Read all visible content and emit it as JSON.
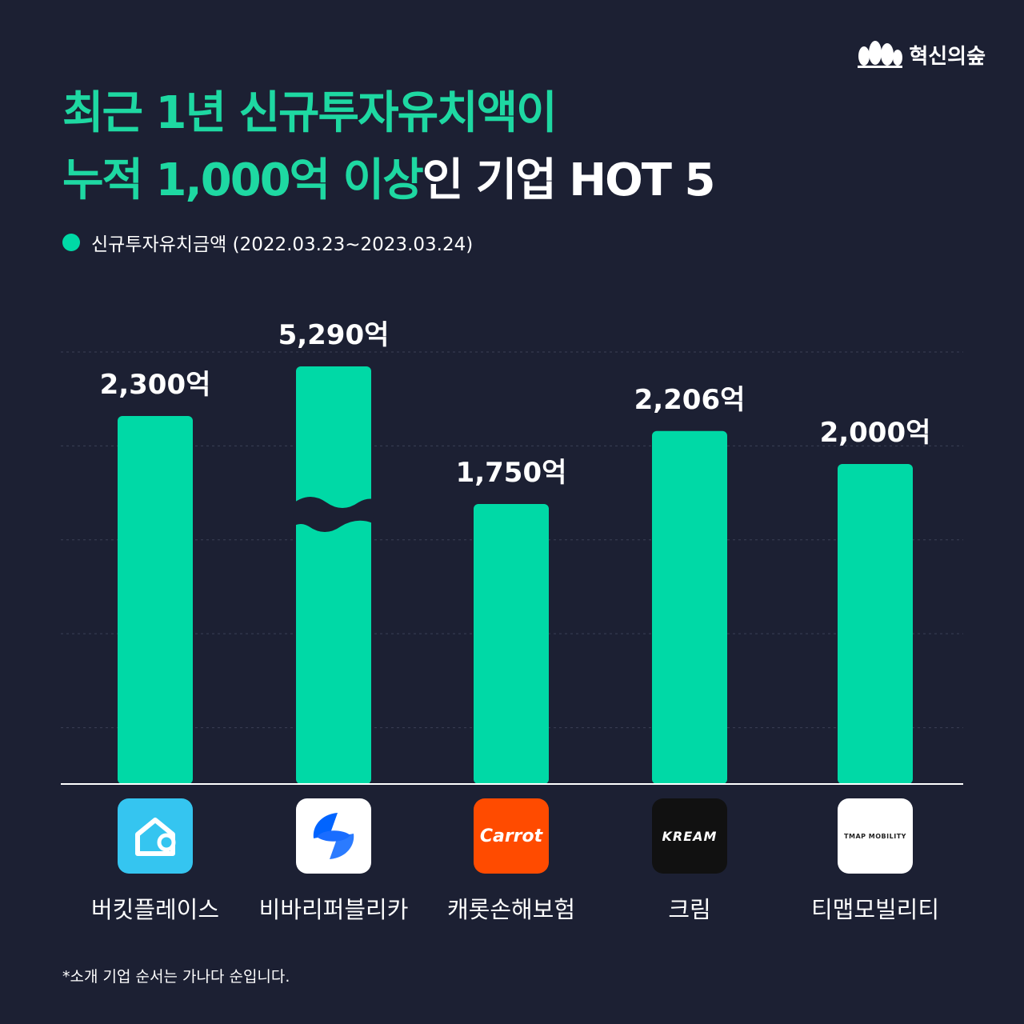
{
  "brand": {
    "name": "혁신의숲",
    "icon": "tree-icon"
  },
  "title": {
    "line1": "최근 1년 신규투자유치액이",
    "line2_highlight": "누적 1,000억 이상",
    "line2_rest": "인 기업 HOT 5"
  },
  "legend": {
    "label": "신규투자유치금액 (2022.03.23~2023.03.24)"
  },
  "footnote": "*소개 기업 순서는 가나다 순입니다.",
  "colors": {
    "background": "#1c2033",
    "accent": "#00d9a6",
    "title_highlight": "#1ed8a2",
    "text": "#ffffff"
  },
  "chart_data": {
    "type": "bar",
    "categories": [
      "버킷플레이스",
      "비바리퍼블리카",
      "캐롯손해보험",
      "크림",
      "티맵모빌리티"
    ],
    "values": [
      2300,
      5290,
      1750,
      2206,
      2000
    ],
    "value_labels": [
      "2,300억",
      "5,290억",
      "1,750억",
      "2,206억",
      "2,000억"
    ],
    "unit": "억",
    "ylim": [
      0,
      2700
    ],
    "axis_break_on": "비바리퍼블리카",
    "grid": true,
    "legend_position": "top-left",
    "logos": [
      {
        "icon": "house-icon",
        "background": "#35c5f0"
      },
      {
        "icon": "toss-icon",
        "background": "#ffffff"
      },
      {
        "icon": "carrot-logo",
        "text": "Carrot",
        "background": "#ff4b00"
      },
      {
        "icon": "kream-logo",
        "text": "KREAM",
        "background": "#111111"
      },
      {
        "icon": "tmap-mobility-logo",
        "text": "TMAP MOBILITY",
        "background": "#ffffff"
      }
    ]
  }
}
